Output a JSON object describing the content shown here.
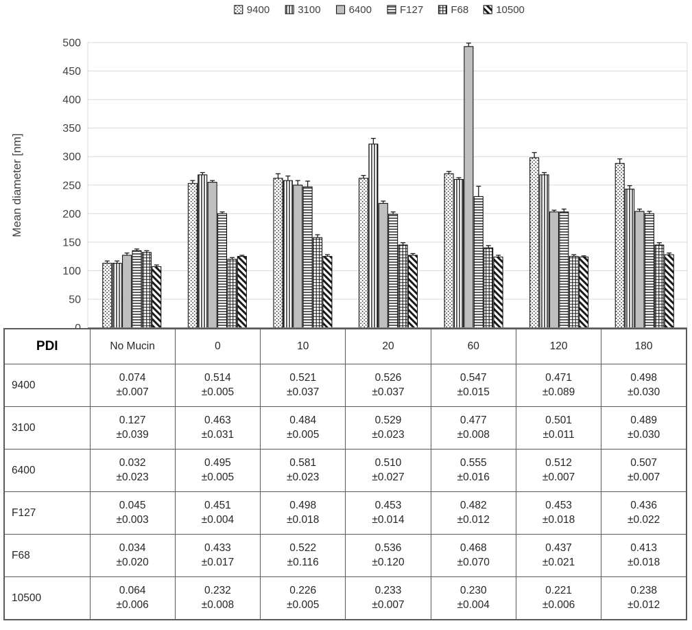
{
  "chart_data": {
    "type": "bar",
    "title": "",
    "xlabel": "",
    "ylabel": "Mean diameter [nm]",
    "ylim": [
      0,
      500
    ],
    "ytick_step": 50,
    "grid": true,
    "legend_position": "top",
    "categories": [
      "No Mucin",
      "0",
      "10",
      "20",
      "60",
      "120",
      "180"
    ],
    "series": [
      {
        "name": "9400",
        "pattern": "dots",
        "values": [
          113,
          253,
          262,
          262,
          270,
          298,
          288
        ],
        "errors": [
          4,
          5,
          8,
          5,
          4,
          9,
          8
        ]
      },
      {
        "name": "3100",
        "pattern": "vertical",
        "values": [
          113,
          268,
          258,
          322,
          260,
          268,
          243
        ],
        "errors": [
          4,
          4,
          8,
          10,
          3,
          4,
          6
        ]
      },
      {
        "name": "6400",
        "pattern": "solid",
        "values": [
          127,
          255,
          250,
          218,
          493,
          203,
          204
        ],
        "errors": [
          4,
          3,
          8,
          4,
          6,
          3,
          4
        ]
      },
      {
        "name": "F127",
        "pattern": "horizontal",
        "values": [
          135,
          200,
          247,
          199,
          230,
          203,
          200
        ],
        "errors": [
          3,
          3,
          10,
          4,
          18,
          5,
          4
        ]
      },
      {
        "name": "F68",
        "pattern": "grid",
        "values": [
          132,
          120,
          158,
          145,
          140,
          125,
          145
        ],
        "errors": [
          3,
          3,
          5,
          4,
          4,
          3,
          4
        ]
      },
      {
        "name": "10500",
        "pattern": "diagonal",
        "values": [
          107,
          125,
          125,
          127,
          124,
          124,
          128
        ],
        "errors": [
          3,
          2,
          3,
          3,
          3,
          2,
          3
        ]
      }
    ]
  },
  "table": {
    "corner_label": "PDI",
    "columns": [
      "No Mucin",
      "0",
      "10",
      "20",
      "60",
      "120",
      "180"
    ],
    "rows": [
      {
        "label": "9400",
        "values": [
          "0.074",
          "0.514",
          "0.521",
          "0.526",
          "0.547",
          "0.471",
          "0.498"
        ],
        "errors": [
          "±0.007",
          "±0.005",
          "±0.037",
          "±0.037",
          "±0.015",
          "±0.089",
          "±0.030"
        ]
      },
      {
        "label": "3100",
        "values": [
          "0.127",
          "0.463",
          "0.484",
          "0.529",
          "0.477",
          "0.501",
          "0.489"
        ],
        "errors": [
          "±0.039",
          "±0.031",
          "±0.005",
          "±0.023",
          "±0.008",
          "±0.011",
          "±0.030"
        ]
      },
      {
        "label": "6400",
        "values": [
          "0.032",
          "0.495",
          "0.581",
          "0.510",
          "0.555",
          "0.512",
          "0.507"
        ],
        "errors": [
          "±0.023",
          "±0.005",
          "±0.023",
          "±0.027",
          "±0.016",
          "±0.007",
          "±0.007"
        ]
      },
      {
        "label": "F127",
        "values": [
          "0.045",
          "0.451",
          "0.498",
          "0.453",
          "0.482",
          "0.453",
          "0.436"
        ],
        "errors": [
          "±0.003",
          "±0.004",
          "±0.018",
          "±0.014",
          "±0.012",
          "±0.018",
          "±0.022"
        ]
      },
      {
        "label": "F68",
        "values": [
          "0.034",
          "0.433",
          "0.522",
          "0.536",
          "0.468",
          "0.437",
          "0.413"
        ],
        "errors": [
          "±0.020",
          "±0.017",
          "±0.116",
          "±0.120",
          "±0.070",
          "±0.021",
          "±0.018"
        ]
      },
      {
        "label": "10500",
        "values": [
          "0.064",
          "0.232",
          "0.226",
          "0.233",
          "0.230",
          "0.221",
          "0.238"
        ],
        "errors": [
          "±0.006",
          "±0.008",
          "±0.005",
          "±0.007",
          "±0.004",
          "±0.006",
          "±0.012"
        ]
      }
    ]
  },
  "colors": {
    "solid_fill": "#bfbfbf",
    "pattern_ink": "#1a1a1a",
    "bar_stroke": "#000000",
    "grid_line": "#d9d9d9",
    "axis_line": "#808080",
    "text": "#404040",
    "table_border": "#595959"
  }
}
